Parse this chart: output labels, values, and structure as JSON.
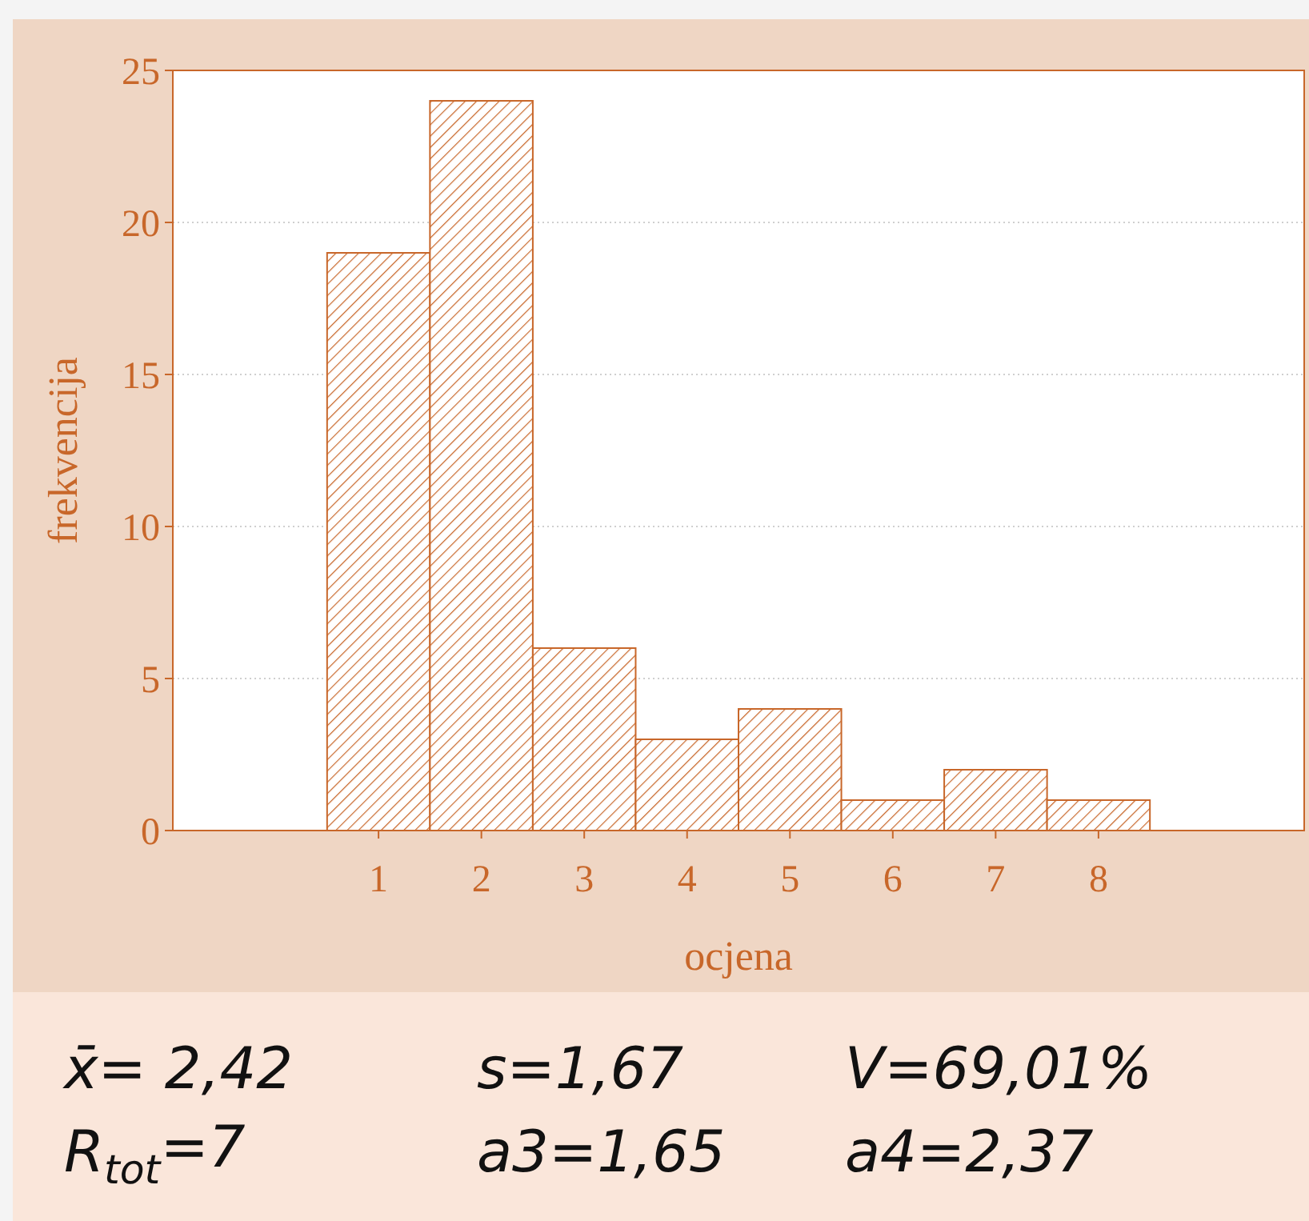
{
  "chart_data": {
    "type": "bar",
    "categories": [
      "1",
      "2",
      "3",
      "4",
      "5",
      "6",
      "7",
      "8"
    ],
    "values": [
      19,
      24,
      6,
      3,
      4,
      1,
      2,
      1
    ],
    "color": "#c8672a",
    "xlabel": "ocjena",
    "ylabel": "frekvencija",
    "ylim": [
      0,
      25
    ],
    "yticks": [
      0,
      5,
      10,
      15,
      20,
      25
    ],
    "grid": "y",
    "annotations": [
      "x̄= 2,42",
      "s=1,67",
      "V=69,01%",
      "R$_{tot}$=7",
      "a3=1,65",
      "a4=2,37"
    ]
  }
}
